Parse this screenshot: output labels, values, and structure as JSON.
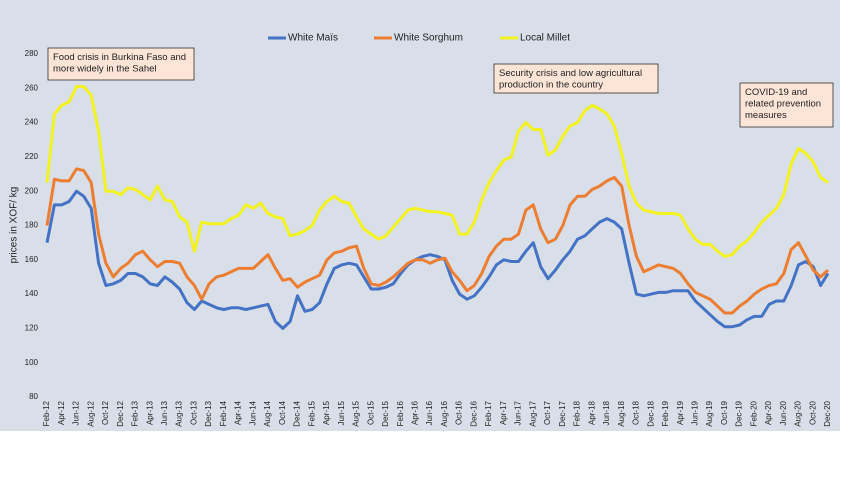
{
  "chart_data": {
    "type": "line",
    "y_label": "prices in XOF/ kg",
    "ylim": [
      80,
      280
    ],
    "yticks": [
      80,
      100,
      120,
      140,
      160,
      180,
      200,
      220,
      240,
      260,
      280
    ],
    "grid": false,
    "legend": "top",
    "categories": [
      "Feb-12",
      null,
      "Apr-12",
      null,
      "Jun-12",
      null,
      "Aug-12",
      null,
      "Oct-12",
      null,
      "Dec-12",
      null,
      "Feb-13",
      null,
      "Apr-13",
      null,
      "Jun-13",
      null,
      "Aug-13",
      null,
      "Oct-13",
      null,
      "Dec-13",
      null,
      "Feb-14",
      null,
      "Apr-14",
      null,
      "Jun-14",
      null,
      "Aug-14",
      null,
      "Oct-14",
      null,
      "Dec-14",
      null,
      "Feb-15",
      null,
      "Apr-15",
      null,
      "Jun-15",
      null,
      "Aug-15",
      null,
      "Oct-15",
      null,
      "Dec-15",
      null,
      "Feb-16",
      null,
      "Apr-16",
      null,
      "Jun-16",
      null,
      "Aug-16",
      null,
      "Oct-16",
      null,
      "Dec-16",
      null,
      "Feb-17",
      null,
      "Apr-17",
      null,
      "Jun-17",
      null,
      "Aug-17",
      null,
      "Oct-17",
      null,
      "Dec-17",
      null,
      "Feb-18",
      null,
      "Apr-18",
      null,
      "Jun-18",
      null,
      "Aug-18",
      null,
      "Oct-18",
      null,
      "Dec-18",
      null,
      "Feb-19",
      null,
      "Apr-19",
      null,
      "Jun-19",
      null,
      "Aug-19",
      null,
      "Oct-19",
      null,
      "Dec-19",
      null,
      "Feb-20",
      null,
      "Apr-20",
      null,
      "Jun-20",
      null,
      "Aug-20",
      null,
      "Oct-20",
      null,
      "Dec-20"
    ],
    "series": [
      {
        "name": "White Maïs",
        "color": "#4472c4",
        "values": [
          170,
          192,
          192,
          194,
          200,
          197,
          190,
          158,
          145,
          146,
          148,
          152,
          152,
          150,
          146,
          145,
          150,
          147,
          143,
          135,
          131,
          136,
          134,
          132,
          131,
          132,
          132,
          131,
          132,
          133,
          134,
          124,
          120,
          124,
          139,
          130,
          131,
          135,
          146,
          155,
          157,
          158,
          157,
          150,
          143,
          143,
          144,
          146,
          152,
          157,
          160,
          162,
          163,
          162,
          160,
          148,
          140,
          137,
          139,
          144,
          150,
          157,
          160,
          159,
          159,
          165,
          170,
          156,
          149,
          154,
          160,
          165,
          172,
          174,
          178,
          182,
          184,
          182,
          178,
          158,
          140,
          139,
          140,
          141,
          141,
          142,
          142,
          142,
          136,
          132,
          128,
          124,
          121,
          121,
          122,
          125,
          127,
          127,
          134,
          136,
          136,
          145,
          157,
          159,
          156,
          145,
          152
        ]
      },
      {
        "name": "White Sorghum",
        "color": "#ed7d31",
        "values": [
          180,
          207,
          206,
          206,
          213,
          212,
          205,
          175,
          158,
          150,
          155,
          158,
          163,
          165,
          160,
          156,
          159,
          159,
          158,
          150,
          145,
          137,
          146,
          150,
          151,
          153,
          155,
          155,
          155,
          159,
          163,
          155,
          148,
          149,
          144,
          147,
          149,
          151,
          160,
          164,
          165,
          167,
          168,
          155,
          146,
          145,
          147,
          150,
          154,
          158,
          160,
          160,
          158,
          160,
          161,
          153,
          148,
          142,
          145,
          152,
          162,
          168,
          172,
          172,
          175,
          189,
          192,
          178,
          170,
          172,
          180,
          192,
          197,
          197,
          201,
          203,
          206,
          208,
          203,
          180,
          162,
          153,
          155,
          157,
          156,
          155,
          152,
          146,
          141,
          139,
          137,
          133,
          129,
          129,
          133,
          136,
          140,
          143,
          145,
          146,
          152,
          166,
          170,
          162,
          154,
          150,
          154
        ]
      },
      {
        "name": "Local Millet",
        "color": "#f2f21e",
        "values": [
          205,
          245,
          250,
          252,
          261,
          261,
          256,
          235,
          200,
          200,
          198,
          202,
          201,
          198,
          195,
          203,
          195,
          194,
          185,
          182,
          165,
          182,
          181,
          181,
          181,
          184,
          186,
          192,
          190,
          193,
          187,
          185,
          184,
          174,
          175,
          177,
          180,
          189,
          194,
          197,
          194,
          193,
          185,
          178,
          175,
          172,
          174,
          179,
          184,
          189,
          190,
          189,
          188,
          188,
          187,
          186,
          175,
          175,
          182,
          195,
          205,
          212,
          218,
          220,
          235,
          240,
          236,
          236,
          221,
          224,
          232,
          238,
          240,
          247,
          250,
          248,
          245,
          238,
          222,
          203,
          193,
          189,
          188,
          187,
          187,
          187,
          186,
          178,
          172,
          169,
          169,
          165,
          162,
          163,
          168,
          171,
          176,
          182,
          186,
          190,
          198,
          216,
          225,
          222,
          217,
          208,
          205
        ]
      }
    ],
    "annotations": [
      {
        "lines": [
          "Food crisis in Burkina Faso and",
          "more widely in the Sahel"
        ]
      },
      {
        "lines": [
          "Security crisis and low agricultural",
          "production in the country"
        ]
      },
      {
        "lines": [
          "COVID-19 and",
          "related prevention",
          "measures"
        ]
      }
    ]
  }
}
